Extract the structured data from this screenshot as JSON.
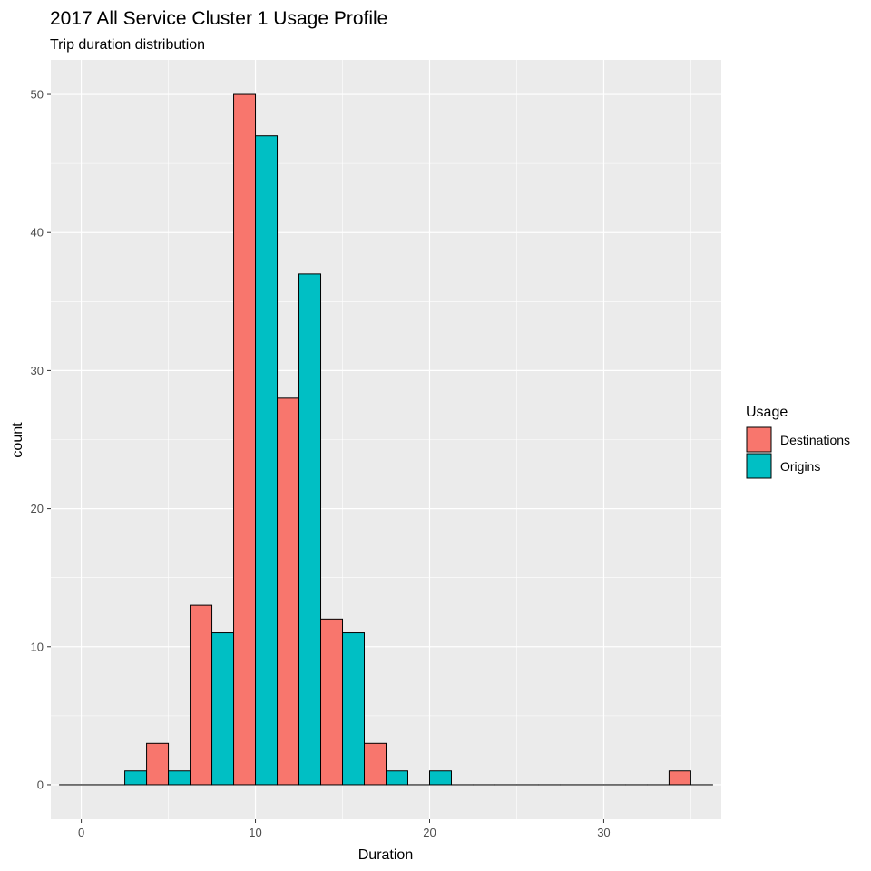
{
  "chart_data": {
    "type": "bar",
    "title": "2017 All Service Cluster 1 Usage Profile",
    "subtitle": "Trip duration distribution",
    "xlabel": "Duration",
    "ylabel": "count",
    "xlim": [
      -1.75,
      36.75
    ],
    "ylim": [
      -2.5,
      52.5
    ],
    "xticks": [
      0,
      10,
      20,
      30
    ],
    "xtick_labels": [
      "0",
      "10",
      "20",
      "30"
    ],
    "yticks": [
      0,
      10,
      20,
      30,
      40,
      50
    ],
    "ytick_labels": [
      "0",
      "10",
      "20",
      "30",
      "40",
      "50"
    ],
    "grid": true,
    "bin_width": 2.5,
    "legend": {
      "title": "Usage",
      "position": "right",
      "entries": [
        "Destinations",
        "Origins"
      ]
    },
    "series": [
      {
        "name": "Destinations",
        "color": "#F8766D",
        "bins": [
          {
            "x": 0,
            "count": 0
          },
          {
            "x": 2.5,
            "count": 0
          },
          {
            "x": 5,
            "count": 3
          },
          {
            "x": 7.5,
            "count": 13
          },
          {
            "x": 10,
            "count": 50
          },
          {
            "x": 12.5,
            "count": 28
          },
          {
            "x": 15,
            "count": 12
          },
          {
            "x": 17.5,
            "count": 3
          },
          {
            "x": 20,
            "count": 0
          },
          {
            "x": 22.5,
            "count": 0
          },
          {
            "x": 25,
            "count": 0
          },
          {
            "x": 27.5,
            "count": 0
          },
          {
            "x": 30,
            "count": 0
          },
          {
            "x": 32.5,
            "count": 0
          },
          {
            "x": 35,
            "count": 1
          }
        ]
      },
      {
        "name": "Origins",
        "color": "#00BFC4",
        "bins": [
          {
            "x": 0,
            "count": 0
          },
          {
            "x": 2.5,
            "count": 1
          },
          {
            "x": 5,
            "count": 1
          },
          {
            "x": 7.5,
            "count": 11
          },
          {
            "x": 10,
            "count": 47
          },
          {
            "x": 12.5,
            "count": 37
          },
          {
            "x": 15,
            "count": 11
          },
          {
            "x": 17.5,
            "count": 1
          },
          {
            "x": 20,
            "count": 1
          },
          {
            "x": 22.5,
            "count": 0
          },
          {
            "x": 25,
            "count": 0
          },
          {
            "x": 27.5,
            "count": 0
          },
          {
            "x": 30,
            "count": 0
          },
          {
            "x": 32.5,
            "count": 0
          },
          {
            "x": 35,
            "count": 0
          }
        ]
      }
    ],
    "colors": {
      "panel_background": "#EBEBEB",
      "grid_major": "#FFFFFF",
      "bar_outline": "#000000"
    }
  }
}
